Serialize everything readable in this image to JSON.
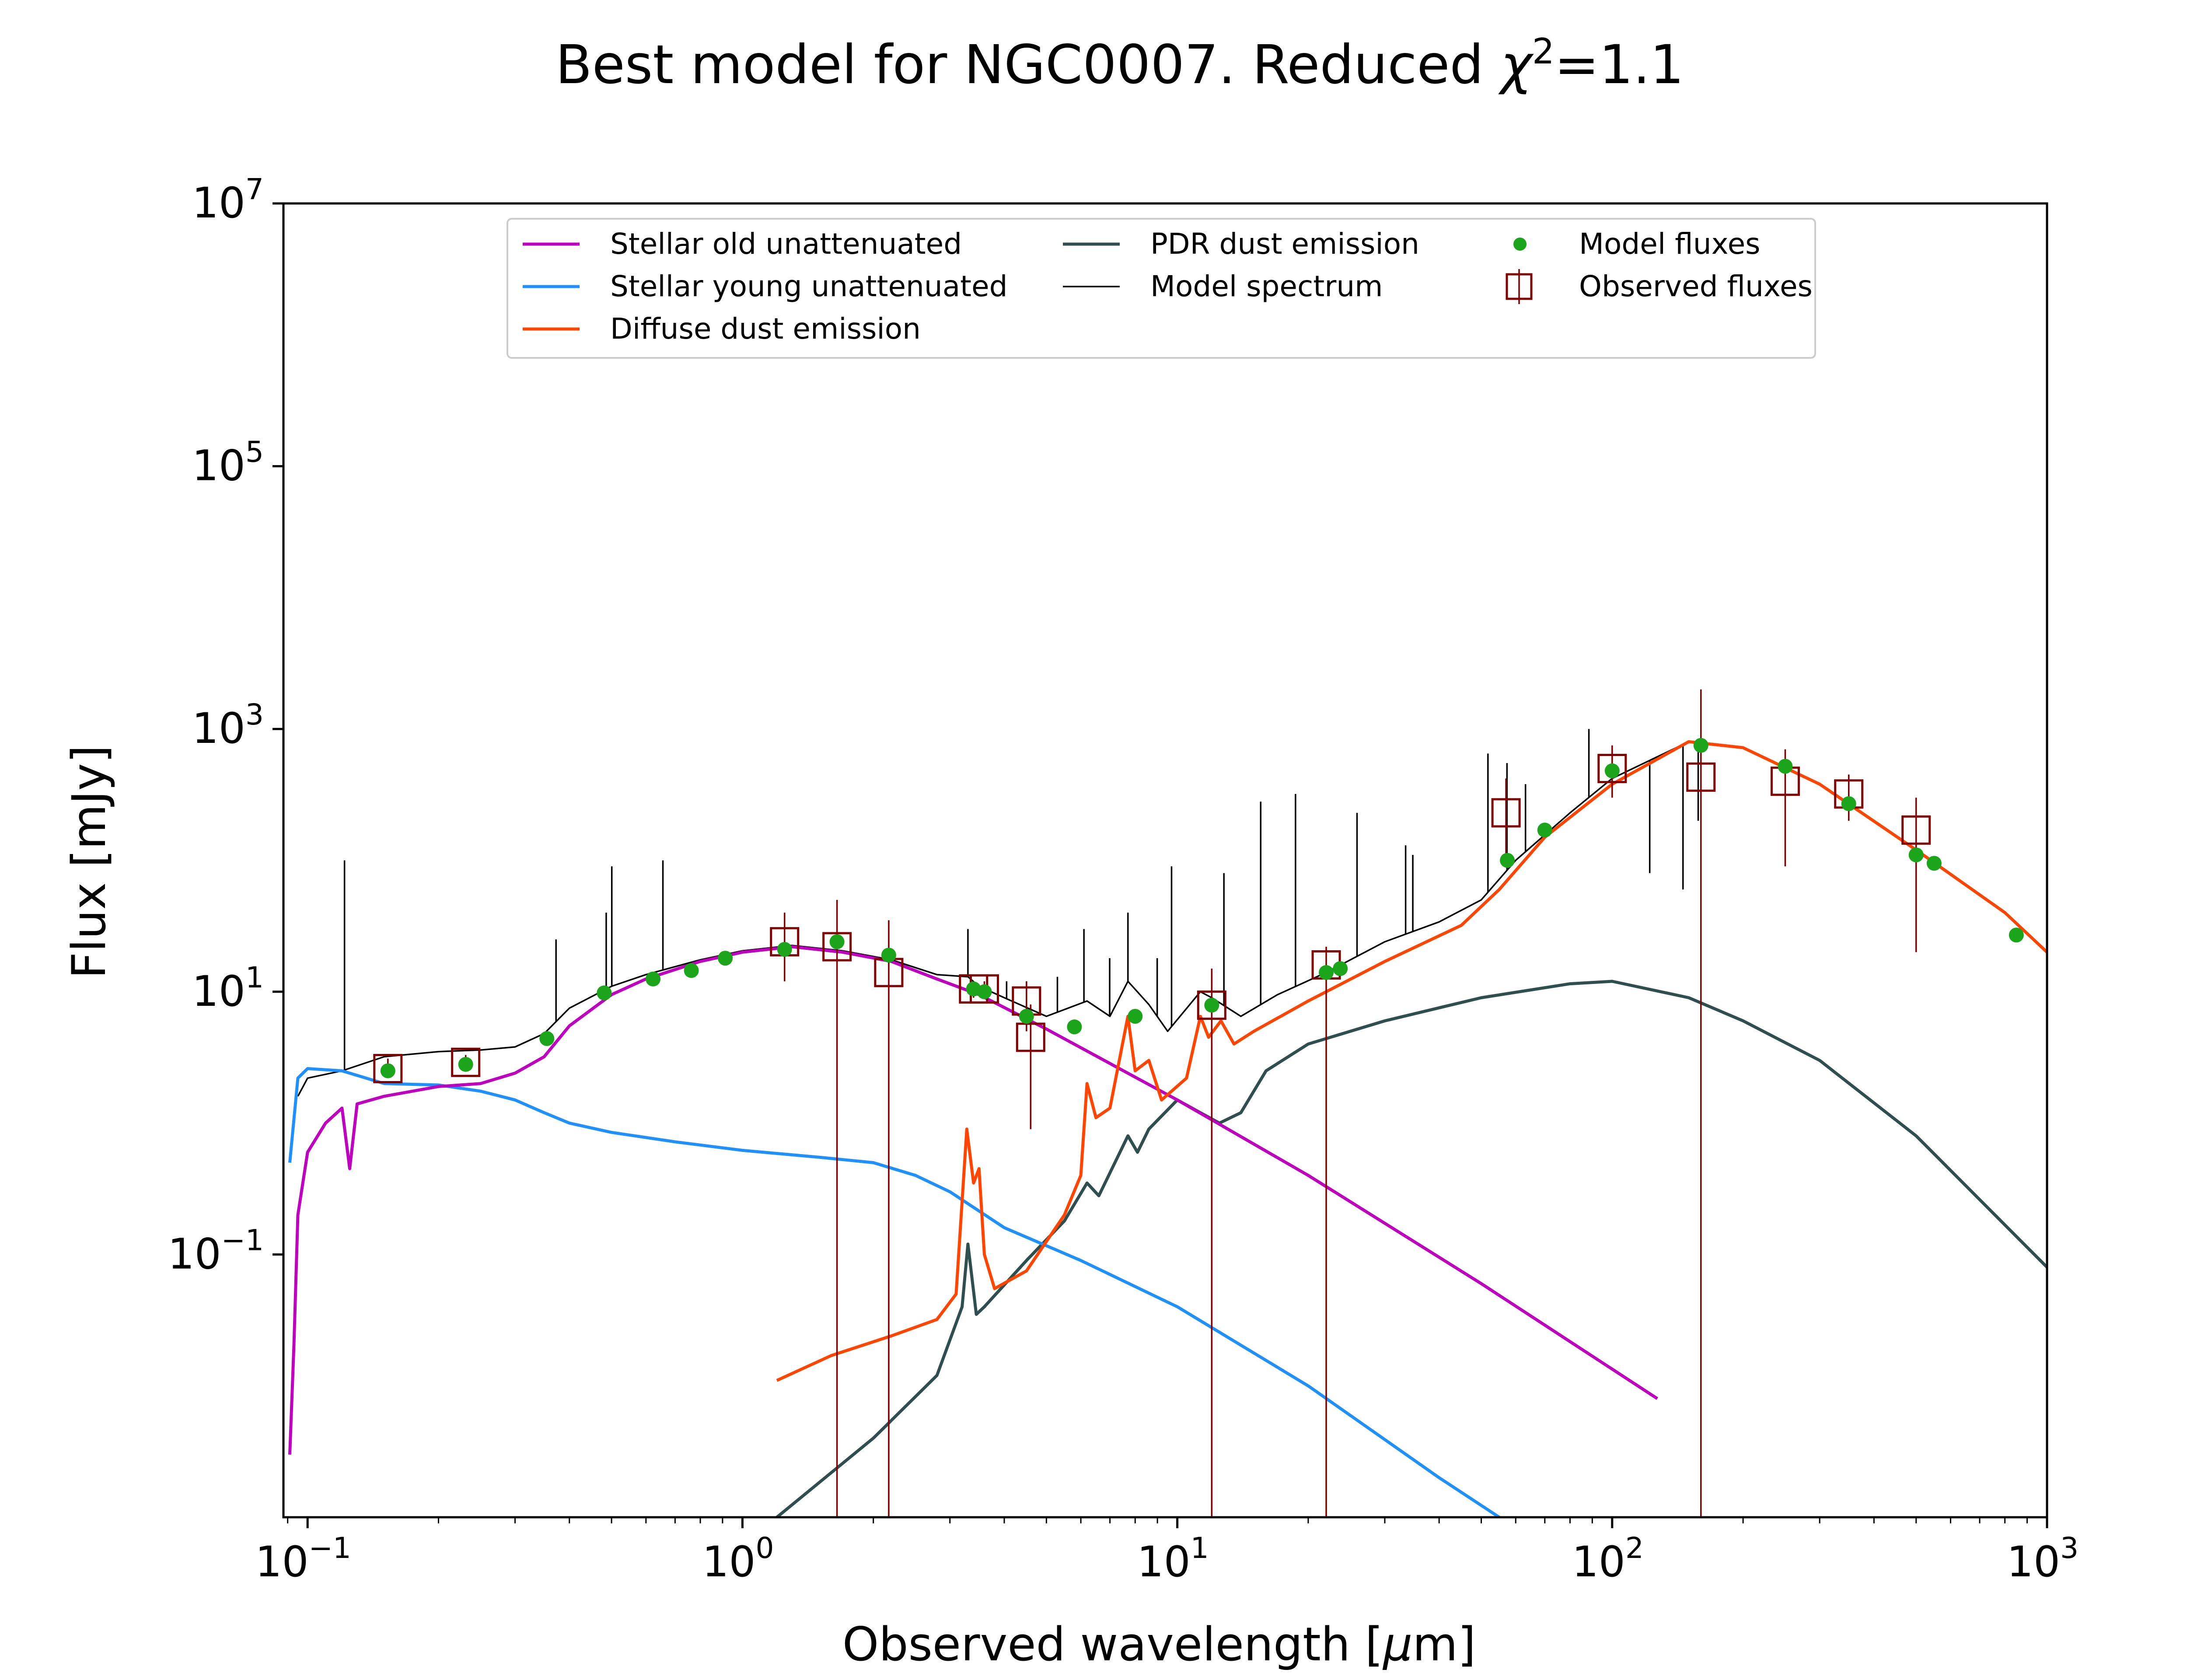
{
  "chart_data": {
    "type": "line",
    "title_main": "Best model for NGC0007. Reduced ",
    "title_chi": "χ",
    "title_sup": "2",
    "title_tail": "=1.1",
    "xlabel_pre": "Observed wavelength [",
    "xlabel_mu": "μ",
    "xlabel_post": "m]",
    "ylabel": "Flux [mJy]",
    "xscale": "log",
    "yscale": "log",
    "xlim": [
      0.088,
      1000
    ],
    "ylim": [
      0.001,
      10000000
    ],
    "xticks": [
      {
        "base": "10",
        "exp": "−1",
        "value": 0.1
      },
      {
        "base": "10",
        "exp": "0",
        "value": 1
      },
      {
        "base": "10",
        "exp": "1",
        "value": 10
      },
      {
        "base": "10",
        "exp": "2",
        "value": 100
      },
      {
        "base": "10",
        "exp": "3",
        "value": 1000
      }
    ],
    "yticks": [
      {
        "base": "10",
        "exp": "−1",
        "value": 0.1
      },
      {
        "base": "10",
        "exp": "1",
        "value": 10
      },
      {
        "base": "10",
        "exp": "3",
        "value": 1000
      },
      {
        "base": "10",
        "exp": "5",
        "value": 100000
      },
      {
        "base": "10",
        "exp": "7",
        "value": 10000000
      }
    ],
    "legend_position": "upper center",
    "colors": {
      "stellar_old": "#bf00bf",
      "stellar_young": "#1e90ff",
      "diffuse_dust": "#ff4500",
      "pdr_dust": "#2f4f4f",
      "model_spectrum": "#000000",
      "model_fluxes": "#1aa51a",
      "observed": "#800000"
    },
    "series": [
      {
        "name": "Stellar old unattenuated",
        "key": "stellar_old",
        "points": [
          [
            0.091,
            0.003
          ],
          [
            0.093,
            0.02
          ],
          [
            0.095,
            0.2
          ],
          [
            0.1,
            0.6
          ],
          [
            0.11,
            1.0
          ],
          [
            0.12,
            1.3
          ],
          [
            0.125,
            0.45
          ],
          [
            0.13,
            1.4
          ],
          [
            0.15,
            1.6
          ],
          [
            0.2,
            1.9
          ],
          [
            0.25,
            2.0
          ],
          [
            0.3,
            2.4
          ],
          [
            0.35,
            3.2
          ],
          [
            0.4,
            5.5
          ],
          [
            0.5,
            9.5
          ],
          [
            0.6,
            12.5
          ],
          [
            0.8,
            17
          ],
          [
            1.0,
            20
          ],
          [
            1.3,
            22
          ],
          [
            1.7,
            20
          ],
          [
            2.2,
            17
          ],
          [
            2.8,
            12.5
          ],
          [
            3.5,
            9.5
          ],
          [
            5.0,
            5.2
          ],
          [
            10,
            1.5
          ],
          [
            20,
            0.4
          ],
          [
            50,
            0.06
          ],
          [
            127,
            0.008
          ]
        ]
      },
      {
        "name": "Stellar young unattenuated",
        "key": "stellar_young",
        "points": [
          [
            0.091,
            0.5
          ],
          [
            0.095,
            2.2
          ],
          [
            0.1,
            2.6
          ],
          [
            0.12,
            2.5
          ],
          [
            0.15,
            2.0
          ],
          [
            0.2,
            1.95
          ],
          [
            0.25,
            1.75
          ],
          [
            0.3,
            1.5
          ],
          [
            0.35,
            1.2
          ],
          [
            0.4,
            1.0
          ],
          [
            0.5,
            0.85
          ],
          [
            0.7,
            0.72
          ],
          [
            1.0,
            0.62
          ],
          [
            1.5,
            0.55
          ],
          [
            2.0,
            0.5
          ],
          [
            2.5,
            0.4
          ],
          [
            3.0,
            0.3
          ],
          [
            4.0,
            0.16
          ],
          [
            6.0,
            0.09
          ],
          [
            10,
            0.04
          ],
          [
            20,
            0.01
          ],
          [
            40,
            0.002
          ],
          [
            55,
            0.001
          ]
        ]
      },
      {
        "name": "Diffuse dust emission",
        "key": "diffuse_dust",
        "points": [
          [
            1.2,
            0.011
          ],
          [
            1.6,
            0.017
          ],
          [
            2.2,
            0.024
          ],
          [
            2.8,
            0.032
          ],
          [
            3.1,
            0.05
          ],
          [
            3.28,
            0.9
          ],
          [
            3.4,
            0.35
          ],
          [
            3.5,
            0.45
          ],
          [
            3.6,
            0.1
          ],
          [
            3.8,
            0.055
          ],
          [
            4.5,
            0.075
          ],
          [
            5.5,
            0.2
          ],
          [
            6.0,
            0.4
          ],
          [
            6.2,
            2.0
          ],
          [
            6.5,
            1.1
          ],
          [
            7.0,
            1.3
          ],
          [
            7.7,
            6.5
          ],
          [
            8.0,
            2.5
          ],
          [
            8.6,
            3.0
          ],
          [
            9.2,
            1.5
          ],
          [
            10.5,
            2.2
          ],
          [
            11.3,
            6.5
          ],
          [
            11.8,
            4.5
          ],
          [
            12.6,
            6.0
          ],
          [
            13.5,
            4.0
          ],
          [
            15,
            5.0
          ],
          [
            20,
            8.5
          ],
          [
            30,
            17
          ],
          [
            45,
            32
          ],
          [
            55,
            60
          ],
          [
            70,
            150
          ],
          [
            100,
            380
          ],
          [
            150,
            800
          ],
          [
            200,
            720
          ],
          [
            300,
            380
          ],
          [
            500,
            120
          ],
          [
            800,
            40
          ],
          [
            1000,
            20
          ]
        ]
      },
      {
        "name": "PDR dust emission",
        "key": "pdr_dust",
        "points": [
          [
            1.2,
            0.001
          ],
          [
            2.0,
            0.004
          ],
          [
            2.8,
            0.012
          ],
          [
            3.2,
            0.04
          ],
          [
            3.3,
            0.12
          ],
          [
            3.45,
            0.035
          ],
          [
            3.6,
            0.04
          ],
          [
            4.5,
            0.09
          ],
          [
            5.5,
            0.18
          ],
          [
            6.2,
            0.35
          ],
          [
            6.6,
            0.28
          ],
          [
            7.7,
            0.8
          ],
          [
            8.1,
            0.6
          ],
          [
            8.6,
            0.9
          ],
          [
            10,
            1.5
          ],
          [
            11.3,
            1.2
          ],
          [
            12.5,
            1.0
          ],
          [
            14,
            1.2
          ],
          [
            16,
            2.5
          ],
          [
            20,
            4.0
          ],
          [
            30,
            6.0
          ],
          [
            50,
            9.0
          ],
          [
            80,
            11.5
          ],
          [
            100,
            12
          ],
          [
            150,
            9
          ],
          [
            200,
            6
          ],
          [
            300,
            3
          ],
          [
            500,
            0.8
          ],
          [
            1000,
            0.08
          ]
        ]
      },
      {
        "name": "Model spectrum",
        "key": "model_spectrum",
        "points": [
          [
            0.095,
            1.6
          ],
          [
            0.1,
            2.2
          ],
          [
            0.12,
            2.5
          ],
          [
            0.15,
            3.2
          ],
          [
            0.2,
            3.5
          ],
          [
            0.25,
            3.6
          ],
          [
            0.3,
            3.8
          ],
          [
            0.35,
            4.8
          ],
          [
            0.4,
            7.5
          ],
          [
            0.5,
            11
          ],
          [
            0.6,
            13.5
          ],
          [
            0.8,
            17.5
          ],
          [
            1.0,
            20.5
          ],
          [
            1.3,
            22.5
          ],
          [
            1.7,
            20.5
          ],
          [
            2.2,
            17.5
          ],
          [
            2.8,
            13.5
          ],
          [
            3.3,
            13
          ],
          [
            3.5,
            11
          ],
          [
            4.0,
            9
          ],
          [
            5.0,
            6.5
          ],
          [
            6.2,
            8.5
          ],
          [
            7.0,
            6.5
          ],
          [
            7.7,
            12
          ],
          [
            8.6,
            8
          ],
          [
            9.5,
            5.0
          ],
          [
            11.3,
            10
          ],
          [
            12,
            9
          ],
          [
            14,
            6.5
          ],
          [
            17,
            9.5
          ],
          [
            22,
            14
          ],
          [
            30,
            24
          ],
          [
            40,
            34
          ],
          [
            50,
            50
          ],
          [
            60,
            100
          ],
          [
            80,
            230
          ],
          [
            100,
            420
          ],
          [
            150,
            800
          ],
          [
            200,
            720
          ],
          [
            300,
            380
          ],
          [
            500,
            120
          ],
          [
            800,
            40
          ],
          [
            1000,
            20
          ]
        ]
      }
    ],
    "emission_lines": [
      [
        0.1216,
        100
      ],
      [
        0.3727,
        25
      ],
      [
        0.4861,
        40
      ],
      [
        0.5007,
        90
      ],
      [
        0.6563,
        100
      ],
      [
        3.3,
        30
      ],
      [
        4.05,
        12
      ],
      [
        5.3,
        13
      ],
      [
        6.1,
        30
      ],
      [
        6.99,
        18
      ],
      [
        7.7,
        40
      ],
      [
        8.99,
        18
      ],
      [
        9.7,
        90
      ],
      [
        12.8,
        80
      ],
      [
        15.55,
        280
      ],
      [
        18.7,
        320
      ],
      [
        25.9,
        230
      ],
      [
        33.5,
        130
      ],
      [
        34.8,
        110
      ],
      [
        51.8,
        650
      ],
      [
        57.3,
        550
      ],
      [
        63.2,
        380
      ],
      [
        88.4,
        1000
      ],
      [
        122,
        80
      ],
      [
        145.5,
        60
      ],
      [
        157.7,
        200
      ]
    ],
    "model_fluxes": [
      [
        0.153,
        2.5
      ],
      [
        0.231,
        2.8
      ],
      [
        0.355,
        4.4
      ],
      [
        0.481,
        9.8
      ],
      [
        0.623,
        12.5
      ],
      [
        0.763,
        14.5
      ],
      [
        0.913,
        18
      ],
      [
        1.25,
        21
      ],
      [
        1.65,
        24
      ],
      [
        2.17,
        19
      ],
      [
        3.4,
        10.5
      ],
      [
        3.6,
        10.0
      ],
      [
        4.5,
        6.5
      ],
      [
        5.8,
        5.4
      ],
      [
        8.0,
        6.5
      ],
      [
        12,
        7.9
      ],
      [
        22,
        14
      ],
      [
        23.7,
        15
      ],
      [
        57.4,
        100
      ],
      [
        70,
        170
      ],
      [
        100,
        480
      ],
      [
        160,
        750
      ],
      [
        250,
        520
      ],
      [
        350,
        270
      ],
      [
        500,
        110
      ],
      [
        550,
        95
      ],
      [
        850,
        27
      ]
    ],
    "observed_fluxes": [
      {
        "x": 0.153,
        "y": 2.6,
        "ylo": 2.2,
        "yhi": 3.1
      },
      {
        "x": 0.231,
        "y": 2.9,
        "ylo": 2.6,
        "yhi": 3.3
      },
      {
        "x": 1.25,
        "y": 24,
        "ylo": 12,
        "yhi": 40
      },
      {
        "x": 1.65,
        "y": 22,
        "ylo": 0.001,
        "yhi": 50
      },
      {
        "x": 2.17,
        "y": 14,
        "ylo": 0.001,
        "yhi": 35
      },
      {
        "x": 3.4,
        "y": 10.5,
        "ylo": 9,
        "yhi": 12
      },
      {
        "x": 3.6,
        "y": 10.5,
        "ylo": 9,
        "yhi": 12
      },
      {
        "x": 4.5,
        "y": 8.5,
        "ylo": 5,
        "yhi": 12
      },
      {
        "x": 4.6,
        "y": 4.5,
        "ylo": 0.9,
        "yhi": 8
      },
      {
        "x": 12,
        "y": 7.9,
        "ylo": 0.001,
        "yhi": 15
      },
      {
        "x": 22,
        "y": 16,
        "ylo": 0.001,
        "yhi": 22
      },
      {
        "x": 57,
        "y": 230,
        "ylo": 90,
        "yhi": 420
      },
      {
        "x": 100,
        "y": 500,
        "ylo": 300,
        "yhi": 750
      },
      {
        "x": 160,
        "y": 430,
        "ylo": 0.001,
        "yhi": 2000
      },
      {
        "x": 250,
        "y": 400,
        "ylo": 90,
        "yhi": 700
      },
      {
        "x": 350,
        "y": 320,
        "ylo": 200,
        "yhi": 450
      },
      {
        "x": 500,
        "y": 170,
        "ylo": 20,
        "yhi": 300
      }
    ],
    "legend": [
      {
        "label": "Stellar old unattenuated",
        "key": "stellar_old",
        "kind": "line"
      },
      {
        "label": "Stellar young unattenuated",
        "key": "stellar_young",
        "kind": "line"
      },
      {
        "label": "Diffuse dust emission",
        "key": "diffuse_dust",
        "kind": "line"
      },
      {
        "label": "PDR dust emission",
        "key": "pdr_dust",
        "kind": "line"
      },
      {
        "label": "Model spectrum",
        "key": "model_spectrum",
        "kind": "thinline"
      },
      {
        "label": "Model fluxes",
        "key": "model_fluxes",
        "kind": "dot"
      },
      {
        "label": "Observed fluxes",
        "key": "observed",
        "kind": "square"
      }
    ]
  }
}
